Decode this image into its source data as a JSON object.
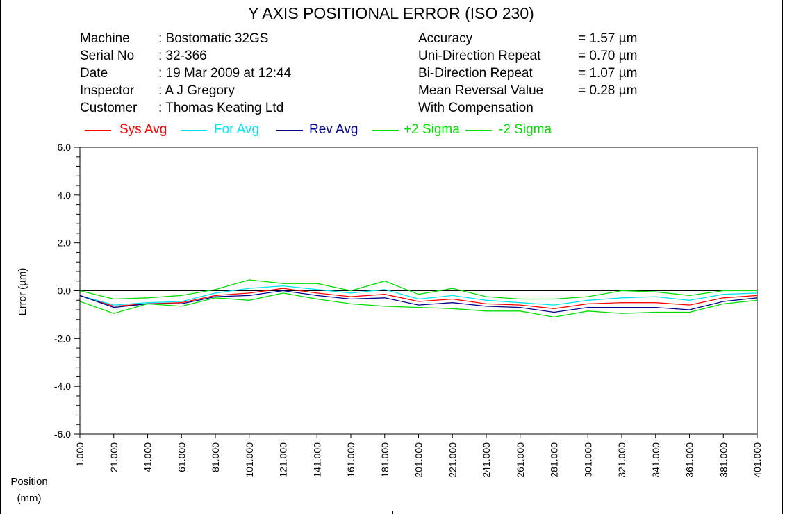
{
  "title": "Y AXIS POSITIONAL ERROR (ISO 230)",
  "info_left": [
    {
      "key": "Machine",
      "value": ": Bostomatic 32GS"
    },
    {
      "key": "Serial No",
      "value": ": 32-366"
    },
    {
      "key": "Date",
      "value": ": 19 Mar 2009 at 12:44"
    },
    {
      "key": "Inspector",
      "value": ": A J Gregory"
    },
    {
      "key": "Customer",
      "value": ": Thomas Keating Ltd"
    }
  ],
  "info_right": [
    {
      "key": "Accuracy",
      "value": "= 1.57 µm"
    },
    {
      "key": "Uni-Direction Repeat",
      "value": "= 0.70 µm"
    },
    {
      "key": "Bi-Direction Repeat",
      "value": "= 1.07 µm"
    },
    {
      "key": "Mean Reversal Value",
      "value": "= 0.28 µm"
    },
    {
      "key": "With Compensation",
      "value": ""
    }
  ],
  "position_label_line1": "Position",
  "position_label_line2": "(mm)",
  "chart_data": {
    "type": "line",
    "title": "Y AXIS POSITIONAL ERROR (ISO 230)",
    "xlabel": "Position (mm)",
    "ylabel": "Error (µm)",
    "ylim": [
      -6.0,
      6.0
    ],
    "xlim": [
      1,
      401
    ],
    "y_ticks": [
      "6.0",
      "4.0",
      "2.0",
      "0.0",
      "-2.0",
      "-4.0",
      "-6.0"
    ],
    "y_tick_values": [
      6,
      4,
      2,
      0,
      -2,
      -4,
      -6
    ],
    "x_tick_labels": [
      "1.000",
      "21.000",
      "41.000",
      "61.000",
      "81.000",
      "101.000",
      "121.000",
      "141.000",
      "161.000",
      "181.000",
      "201.000",
      "221.000",
      "241.000",
      "261.000",
      "281.000",
      "301.000",
      "321.000",
      "341.000",
      "361.000",
      "381.000",
      "401.000"
    ],
    "x": [
      1,
      21,
      41,
      61,
      81,
      101,
      121,
      141,
      161,
      181,
      201,
      221,
      241,
      261,
      281,
      301,
      321,
      341,
      361,
      381,
      401
    ],
    "grid": false,
    "zero_line": true,
    "legend_position": "top",
    "series": [
      {
        "name": "Sys Avg",
        "color": "#ff0000",
        "values": [
          -0.2,
          -0.65,
          -0.55,
          -0.5,
          -0.2,
          -0.1,
          0.1,
          -0.1,
          -0.25,
          -0.15,
          -0.45,
          -0.35,
          -0.55,
          -0.6,
          -0.75,
          -0.55,
          -0.5,
          -0.5,
          -0.6,
          -0.3,
          -0.2
        ]
      },
      {
        "name": "For Avg",
        "color": "#00e5ee",
        "values": [
          -0.2,
          -0.6,
          -0.5,
          -0.45,
          -0.1,
          0.1,
          0.2,
          0.05,
          -0.1,
          0.05,
          -0.35,
          -0.2,
          -0.4,
          -0.5,
          -0.6,
          -0.4,
          -0.3,
          -0.25,
          -0.4,
          -0.15,
          -0.1
        ]
      },
      {
        "name": "Rev Avg",
        "color": "#00008b",
        "values": [
          -0.2,
          -0.7,
          -0.55,
          -0.55,
          -0.25,
          -0.2,
          0.0,
          -0.2,
          -0.35,
          -0.3,
          -0.6,
          -0.5,
          -0.65,
          -0.7,
          -0.9,
          -0.7,
          -0.7,
          -0.7,
          -0.8,
          -0.45,
          -0.3
        ]
      },
      {
        "name": "+2 Sigma",
        "color": "#00dd00",
        "values": [
          0.0,
          -0.35,
          -0.3,
          -0.2,
          0.05,
          0.45,
          0.3,
          0.3,
          0.0,
          0.4,
          -0.15,
          0.1,
          -0.25,
          -0.35,
          -0.35,
          -0.25,
          0.0,
          -0.05,
          -0.2,
          0.0,
          0.0
        ]
      },
      {
        "name": "-2 Sigma",
        "color": "#00dd00",
        "values": [
          -0.45,
          -0.95,
          -0.55,
          -0.65,
          -0.3,
          -0.4,
          -0.1,
          -0.35,
          -0.55,
          -0.65,
          -0.7,
          -0.75,
          -0.85,
          -0.85,
          -1.1,
          -0.85,
          -0.95,
          -0.9,
          -0.9,
          -0.55,
          -0.4
        ]
      }
    ]
  }
}
